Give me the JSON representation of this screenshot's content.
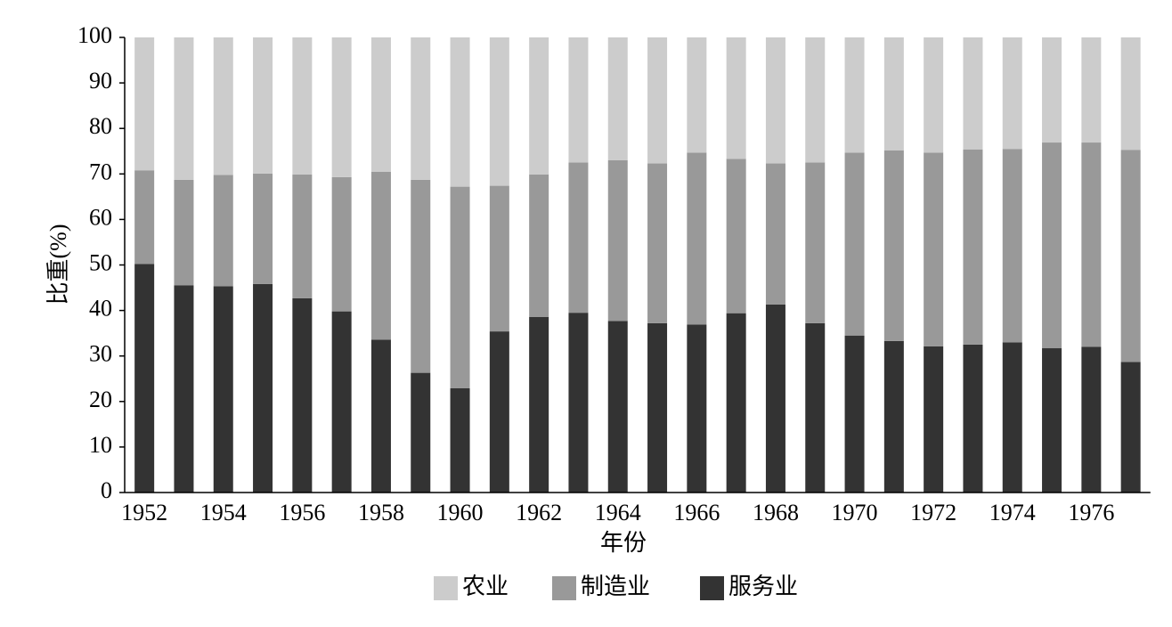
{
  "chart_data": {
    "type": "stacked_bar",
    "x_label": "年份",
    "y_label": "比重(%)",
    "categories": [
      "1952",
      null,
      "1954",
      null,
      "1956",
      null,
      "1958",
      null,
      "1960",
      null,
      "1962",
      null,
      "1964",
      null,
      "1966",
      null,
      "1968",
      null,
      "1970",
      null,
      "1972",
      null,
      "1974",
      null,
      "1976",
      null
    ],
    "series": [
      {
        "name": "服务业",
        "color": "#333333",
        "values": [
          50.2,
          45.5,
          45.3,
          45.8,
          42.7,
          39.8,
          33.6,
          26.3,
          22.9,
          35.4,
          38.6,
          39.5,
          37.7,
          37.2,
          36.9,
          39.4,
          41.3,
          37.2,
          34.5,
          33.3,
          32.1,
          32.5,
          33.0,
          31.7,
          32.0,
          28.7
        ]
      },
      {
        "name": "制造业",
        "color": "#999999",
        "values": [
          20.6,
          23.2,
          24.5,
          24.3,
          27.2,
          29.5,
          36.9,
          42.4,
          44.3,
          32.0,
          31.3,
          33.0,
          35.3,
          35.1,
          37.8,
          33.9,
          31.0,
          35.3,
          40.2,
          41.9,
          42.6,
          42.9,
          42.5,
          45.2,
          44.9,
          46.6
        ]
      },
      {
        "name": "农业",
        "color": "#cccccc",
        "values": [
          29.2,
          31.3,
          30.2,
          29.9,
          30.1,
          30.7,
          29.5,
          31.3,
          32.8,
          32.6,
          30.1,
          27.5,
          27.0,
          27.7,
          25.3,
          26.7,
          27.7,
          27.5,
          25.3,
          24.8,
          25.3,
          24.6,
          24.5,
          23.1,
          23.1,
          24.7
        ]
      }
    ],
    "ylim": [
      0,
      100
    ],
    "yticks": [
      0,
      10,
      20,
      30,
      40,
      50,
      60,
      70,
      80,
      90,
      100
    ]
  }
}
